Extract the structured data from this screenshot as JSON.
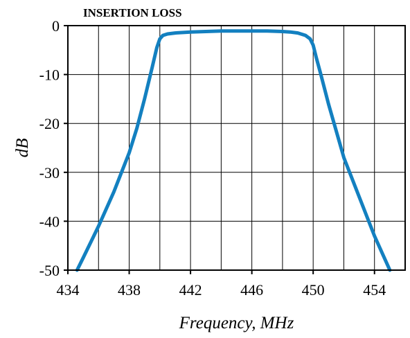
{
  "chart_data": {
    "type": "line",
    "title": "INSERTION LOSS",
    "xlabel": "Frequency, MHz",
    "ylabel": "dB",
    "xlim": [
      434,
      456
    ],
    "ylim": [
      -50,
      0
    ],
    "grid": true,
    "x_ticks": [
      434,
      438,
      442,
      446,
      450,
      454
    ],
    "x_tick_labels": [
      "434",
      "438",
      "442",
      "446",
      "450",
      "454"
    ],
    "x_grid": [
      434,
      436,
      438,
      440,
      442,
      444,
      446,
      448,
      450,
      452,
      454,
      456
    ],
    "y_ticks": [
      0,
      -10,
      -20,
      -30,
      -40,
      -50
    ],
    "y_tick_labels": [
      "0",
      "-10",
      "-20",
      "-30",
      "-40",
      "-50"
    ],
    "line_color": "#1380c0",
    "series": [
      {
        "x": [
          434.6,
          435,
          436,
          437,
          438,
          438.5,
          439,
          439.5,
          439.8,
          440,
          440.2,
          440.5,
          441,
          442,
          443,
          444,
          445,
          446,
          447,
          448,
          448.5,
          449,
          449.5,
          449.8,
          450,
          450.2,
          450.5,
          451,
          452,
          453,
          454,
          455
        ],
        "y": [
          -50,
          -47.5,
          -41,
          -34,
          -26,
          -21,
          -15,
          -8.5,
          -4.5,
          -2.7,
          -2.0,
          -1.7,
          -1.5,
          -1.3,
          -1.2,
          -1.1,
          -1.1,
          -1.1,
          -1.1,
          -1.2,
          -1.3,
          -1.5,
          -2.0,
          -2.7,
          -4.0,
          -6.5,
          -10,
          -16,
          -27,
          -35,
          -43,
          -50
        ]
      }
    ]
  }
}
